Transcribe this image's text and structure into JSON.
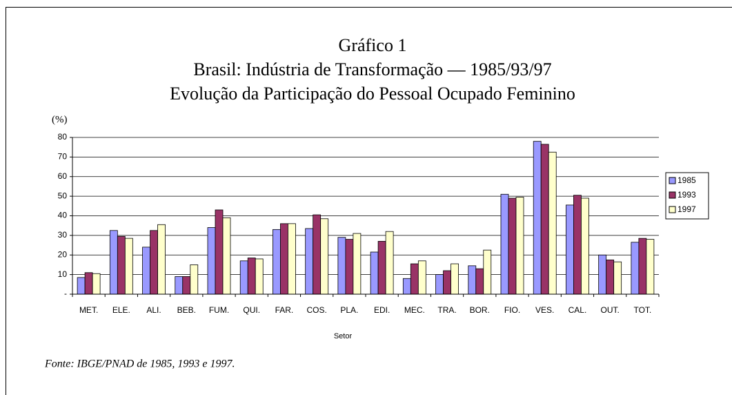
{
  "chart_data": {
    "type": "bar",
    "title": [
      "Gráfico 1",
      "Brasil: Indústria de Transformação — 1985/93/97",
      "Evolução da Participação do Pessoal Ocupado Feminino"
    ],
    "y_label": "(%)",
    "x_label": "Setor",
    "source": "Fonte: IBGE/PNAD de 1985, 1993 e 1997.",
    "categories": [
      "MET.",
      "ELE.",
      "ALI.",
      "BEB.",
      "FUM.",
      "QUI.",
      "FAR.",
      "COS.",
      "PLA.",
      "EDI.",
      "MEC.",
      "TRA.",
      "BOR.",
      "FIO.",
      "VES.",
      "CAL.",
      "OUT.",
      "TOT."
    ],
    "series": [
      {
        "name": "1985",
        "color": "#9999ff",
        "values": [
          8.5,
          32.5,
          24,
          9,
          34,
          17,
          33,
          33.5,
          29,
          21.5,
          8,
          10,
          14.5,
          51,
          78,
          45.5,
          20,
          26.5
        ]
      },
      {
        "name": "1993",
        "color": "#993366",
        "values": [
          11,
          29.5,
          32.5,
          9,
          43,
          18.5,
          36,
          40.5,
          28,
          27,
          15.5,
          12,
          13,
          49,
          76.5,
          50.5,
          17.5,
          28.5
        ]
      },
      {
        "name": "1997",
        "color": "#ffffcc",
        "values": [
          10.5,
          28.5,
          35.5,
          15,
          39,
          18,
          36,
          38.5,
          31,
          32,
          17,
          15.5,
          22.5,
          49.5,
          72.5,
          49,
          16.5,
          28
        ]
      }
    ],
    "ylim": [
      0,
      80
    ],
    "yticks": [
      {
        "value": 0,
        "label": "-"
      },
      10,
      20,
      30,
      40,
      50,
      60,
      70,
      80
    ],
    "grid": true,
    "legend": "right"
  }
}
